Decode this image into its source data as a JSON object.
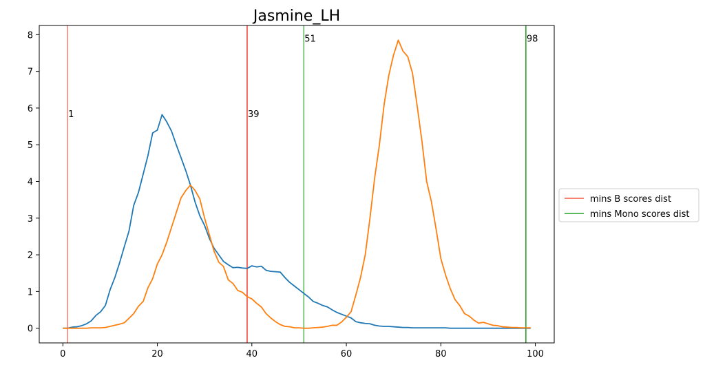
{
  "chart_data": {
    "type": "line",
    "title": "Jasmine_LH",
    "xlabel": "",
    "ylabel": "",
    "xlim": [
      -5,
      104
    ],
    "ylim": [
      -0.4,
      8.25
    ],
    "xticks": [
      0,
      20,
      40,
      60,
      80,
      100
    ],
    "yticks": [
      0,
      1,
      2,
      3,
      4,
      5,
      6,
      7,
      8
    ],
    "grid": false,
    "legend_position": "center-right-outside",
    "legend": [
      {
        "label": "mins B scores dist",
        "color": "#fa8072"
      },
      {
        "label": "mins Mono scores dist",
        "color": "#5cb85c"
      }
    ],
    "vlines": [
      {
        "x": 1,
        "label": "1",
        "label_y": 5.85,
        "color": "#fa8072"
      },
      {
        "x": 39,
        "label": "39",
        "label_y": 5.85,
        "color": "#f44336"
      },
      {
        "x": 51,
        "label": "51",
        "label_y": 7.9,
        "color": "#5cb85c"
      },
      {
        "x": 98,
        "label": "98",
        "label_y": 7.9,
        "color": "#2ca02c"
      }
    ],
    "series": [
      {
        "color": "#1f77b4",
        "x": [
          0,
          1,
          2,
          3,
          4,
          5,
          6,
          7,
          8,
          9,
          10,
          11,
          12,
          13,
          14,
          15,
          16,
          17,
          18,
          19,
          20,
          21,
          22,
          23,
          24,
          25,
          26,
          27,
          28,
          29,
          30,
          31,
          32,
          33,
          34,
          35,
          36,
          37,
          38,
          39,
          40,
          41,
          42,
          43,
          44,
          45,
          46,
          47,
          48,
          49,
          50,
          51,
          52,
          53,
          54,
          55,
          56,
          57,
          58,
          59,
          60,
          61,
          62,
          63,
          64,
          65,
          66,
          67,
          68,
          69,
          70,
          71,
          72,
          73,
          74,
          75,
          76,
          77,
          78,
          79,
          80,
          81,
          82,
          83,
          84,
          85,
          86,
          87,
          88,
          89,
          90,
          91,
          92,
          93,
          94,
          95,
          96,
          97,
          98,
          99
        ],
        "y": [
          0,
          0,
          0.03,
          0.04,
          0.07,
          0.12,
          0.2,
          0.35,
          0.45,
          0.62,
          1.05,
          1.38,
          1.78,
          2.22,
          2.65,
          3.35,
          3.7,
          4.2,
          4.7,
          5.32,
          5.4,
          5.82,
          5.62,
          5.37,
          5.0,
          4.65,
          4.3,
          3.9,
          3.43,
          3.06,
          2.8,
          2.45,
          2.18,
          2.0,
          1.82,
          1.73,
          1.65,
          1.66,
          1.64,
          1.63,
          1.7,
          1.67,
          1.69,
          1.58,
          1.55,
          1.54,
          1.53,
          1.38,
          1.25,
          1.15,
          1.05,
          0.95,
          0.85,
          0.73,
          0.68,
          0.62,
          0.58,
          0.5,
          0.43,
          0.38,
          0.33,
          0.28,
          0.18,
          0.15,
          0.13,
          0.12,
          0.08,
          0.06,
          0.05,
          0.05,
          0.04,
          0.03,
          0.02,
          0.02,
          0.01,
          0.01,
          0.01,
          0.01,
          0.01,
          0.01,
          0.01,
          0.01,
          0.0,
          0.0,
          0.0,
          0.0,
          0.0,
          0.0,
          0.0,
          0.0,
          0.0,
          0.0,
          0.0,
          0.0,
          0.0,
          0.0,
          0.0,
          0.0,
          0.0,
          0.0
        ]
      },
      {
        "color": "#ff7f0e",
        "x": [
          0,
          1,
          2,
          3,
          4,
          5,
          6,
          7,
          8,
          9,
          10,
          11,
          12,
          13,
          14,
          15,
          16,
          17,
          18,
          19,
          20,
          21,
          22,
          23,
          24,
          25,
          26,
          27,
          28,
          29,
          30,
          31,
          32,
          33,
          34,
          35,
          36,
          37,
          38,
          39,
          40,
          41,
          42,
          43,
          44,
          45,
          46,
          47,
          48,
          49,
          50,
          51,
          52,
          53,
          54,
          55,
          56,
          57,
          58,
          59,
          60,
          61,
          62,
          63,
          64,
          65,
          66,
          67,
          68,
          69,
          70,
          71,
          72,
          73,
          74,
          75,
          76,
          77,
          78,
          79,
          80,
          81,
          82,
          83,
          84,
          85,
          86,
          87,
          88,
          89,
          90,
          91,
          92,
          93,
          94,
          95,
          96,
          97,
          98,
          99
        ],
        "y": [
          0,
          0,
          0,
          0,
          0,
          0,
          0.01,
          0.01,
          0.01,
          0.02,
          0.05,
          0.08,
          0.11,
          0.15,
          0.27,
          0.4,
          0.6,
          0.73,
          1.1,
          1.35,
          1.75,
          2.0,
          2.35,
          2.75,
          3.15,
          3.55,
          3.75,
          3.9,
          3.75,
          3.52,
          3.0,
          2.55,
          2.1,
          1.8,
          1.68,
          1.32,
          1.22,
          1.03,
          0.98,
          0.86,
          0.8,
          0.68,
          0.58,
          0.4,
          0.28,
          0.18,
          0.1,
          0.05,
          0.04,
          0.01,
          0.01,
          0.0,
          0.0,
          0.01,
          0.02,
          0.03,
          0.05,
          0.08,
          0.08,
          0.17,
          0.3,
          0.45,
          0.9,
          1.38,
          2.0,
          3.0,
          4.1,
          5.0,
          6.1,
          6.9,
          7.45,
          7.85,
          7.55,
          7.4,
          6.95,
          6.05,
          5.1,
          4.0,
          3.45,
          2.7,
          1.9,
          1.45,
          1.08,
          0.78,
          0.62,
          0.4,
          0.33,
          0.22,
          0.14,
          0.16,
          0.12,
          0.08,
          0.07,
          0.04,
          0.03,
          0.02,
          0.02,
          0.01,
          0.01,
          0.01
        ]
      }
    ]
  }
}
